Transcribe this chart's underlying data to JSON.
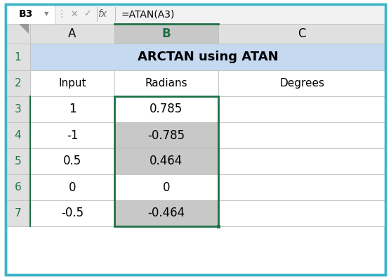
{
  "formula_bar_cell": "B3",
  "formula_bar_formula": "=ATAN(A3)",
  "col_headers": [
    "A",
    "B",
    "C"
  ],
  "row1_label": "ARCTAN using ATAN",
  "row2_headers": [
    "Input",
    "Radians",
    "Degrees"
  ],
  "data_rows": [
    [
      "1",
      "0.785",
      ""
    ],
    [
      "-1",
      "-0.785",
      ""
    ],
    [
      "0.5",
      "0.464",
      ""
    ],
    [
      "0",
      "0",
      ""
    ],
    [
      "-0.5",
      "-0.464",
      ""
    ]
  ],
  "outer_border_color": "#3ab5c8",
  "formula_bar_bg": "#f2f2f2",
  "header_col_bg": "#e0e0e0",
  "selected_col_header_bg": "#c8c8c8",
  "row1_bg": "#c5d9f1",
  "row_bg_white": "#ffffff",
  "row_bg_gray": "#c8c8c8",
  "selected_cell_border": "#1e7145",
  "row_number_color": "#217346",
  "col_header_color_normal": "#000000",
  "col_header_color_selected": "#1e7145",
  "grid_color": "#c0c0c0",
  "text_color": "#000000",
  "row_header_bg": "#e0e0e0",
  "b_col_bgs": [
    "#ffffff",
    "#c8c8c8",
    "#c8c8c8",
    "#ffffff",
    "#c8c8c8"
  ]
}
